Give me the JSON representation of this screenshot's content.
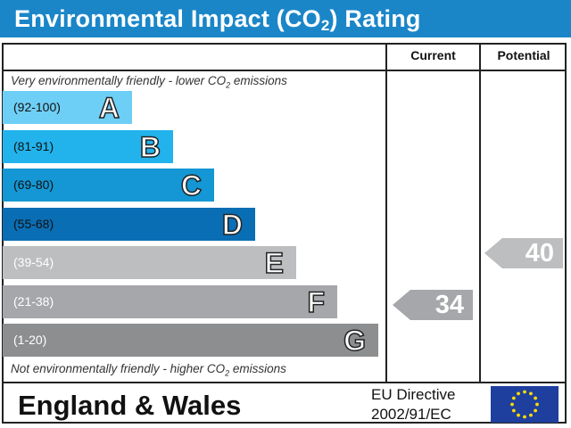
{
  "title": {
    "main": "Environmental Impact (CO",
    "sub": "2",
    "end": ") Rating"
  },
  "columns": {
    "current": "Current",
    "potential": "Potential"
  },
  "notes": {
    "top_main": "Very environmentally friendly - lower CO",
    "top_sub": "2",
    "top_end": " emissions",
    "bottom_main": "Not environmentally friendly - higher CO",
    "bottom_sub": "2",
    "bottom_end": " emissions"
  },
  "chart_data": {
    "type": "bar",
    "categories": [
      "A",
      "B",
      "C",
      "D",
      "E",
      "F",
      "G"
    ],
    "bands": [
      {
        "letter": "A",
        "range": "(92-100)",
        "color": "#6ecff6"
      },
      {
        "letter": "B",
        "range": "(81-91)",
        "color": "#22b3ec"
      },
      {
        "letter": "C",
        "range": "(69-80)",
        "color": "#1497d4"
      },
      {
        "letter": "D",
        "range": "(55-68)",
        "color": "#0a6eb4"
      },
      {
        "letter": "E",
        "range": "(39-54)",
        "color": "#bcbec0"
      },
      {
        "letter": "F",
        "range": "(21-38)",
        "color": "#a5a7aa"
      },
      {
        "letter": "G",
        "range": "(1-20)",
        "color": "#8c8e90"
      }
    ],
    "current": {
      "value": 34,
      "band": "F",
      "color": "#a5a7aa"
    },
    "potential": {
      "value": 40,
      "band": "E",
      "color": "#bcbec0"
    }
  },
  "footer": {
    "region": "England & Wales",
    "directive_line1": "EU Directive",
    "directive_line2": "2002/91/EC"
  },
  "flag_icon": "eu-flag-icon"
}
